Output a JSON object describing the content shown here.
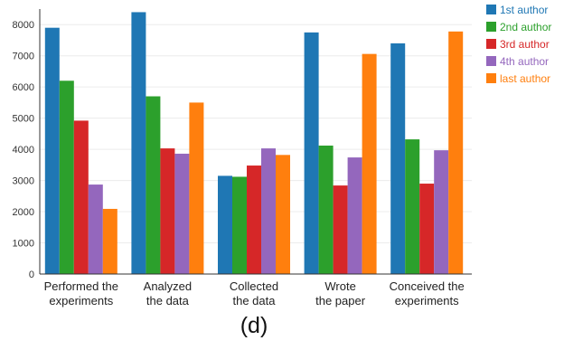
{
  "caption": "(d)",
  "chart_data": {
    "type": "bar",
    "categories": [
      [
        "Performed the",
        "experiments"
      ],
      [
        "Analyzed",
        "the data"
      ],
      [
        "Collected",
        "the data"
      ],
      [
        "Wrote",
        "the paper"
      ],
      [
        "Conceived the",
        "experiments"
      ]
    ],
    "series": [
      {
        "name": "1st author",
        "color": "#1f77b4",
        "values": [
          7900,
          8400,
          3150,
          7750,
          7400
        ]
      },
      {
        "name": "2nd author",
        "color": "#2ca02c",
        "values": [
          6200,
          5700,
          3120,
          4120,
          4320
        ]
      },
      {
        "name": "3rd author",
        "color": "#d62728",
        "values": [
          4920,
          4030,
          3480,
          2840,
          2900
        ]
      },
      {
        "name": "4th author",
        "color": "#9467bd",
        "values": [
          2870,
          3860,
          4030,
          3740,
          3970
        ]
      },
      {
        "name": "last author",
        "color": "#ff7f0e",
        "values": [
          2090,
          5500,
          3820,
          7060,
          7780
        ]
      }
    ],
    "ylim": [
      0,
      8500
    ],
    "yticks": [
      0,
      1000,
      2000,
      3000,
      4000,
      5000,
      6000,
      7000,
      8000
    ],
    "grid": true,
    "legend": "top-right"
  }
}
